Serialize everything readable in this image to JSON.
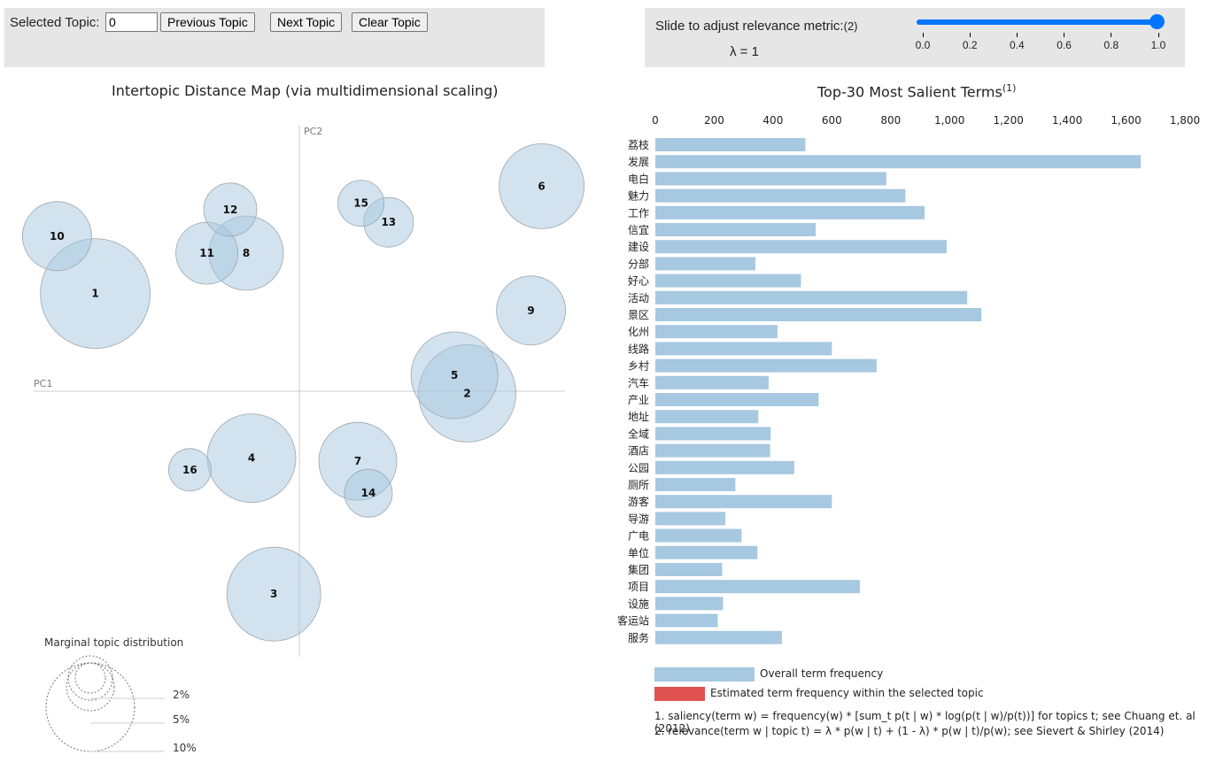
{
  "topic_control": {
    "label": "Selected Topic:",
    "value": "0",
    "prev_label": "Previous Topic",
    "next_label": "Next Topic",
    "clear_label": "Clear Topic"
  },
  "lambda_control": {
    "label": "Slide to adjust relevance metric:",
    "superscript": "(2)",
    "value_label": "λ = 1",
    "slider_value": 1.0,
    "ticks": [
      "0.0",
      "0.2",
      "0.4",
      "0.6",
      "0.8",
      "1.0"
    ]
  },
  "left_title": "Intertopic Distance Map (via multidimensional scaling)",
  "right_title": "Top-30 Most Salient Terms",
  "right_title_sup": "(1)",
  "axis_labels": {
    "pc1": "PC1",
    "pc2": "PC2"
  },
  "marginal": {
    "title": "Marginal topic distribution",
    "labels": [
      "2%",
      "5%",
      "10%"
    ]
  },
  "chart_data": [
    {
      "type": "scatter",
      "title": "Intertopic Distance Map (via multidimensional scaling)",
      "xlabel": "PC1",
      "ylabel": "PC2",
      "bubble_color": "#a6c8e0",
      "xlim": [
        -0.25,
        0.25
      ],
      "ylim": [
        -0.25,
        0.25
      ],
      "topics": [
        {
          "id": "1",
          "x": -0.192,
          "y": 0.092,
          "size": 6.2
        },
        {
          "id": "2",
          "x": 0.158,
          "y": -0.002,
          "size": 5.5
        },
        {
          "id": "3",
          "x": -0.024,
          "y": -0.191,
          "size": 5.3
        },
        {
          "id": "4",
          "x": -0.045,
          "y": -0.063,
          "size": 5.0
        },
        {
          "id": "5",
          "x": 0.146,
          "y": 0.015,
          "size": 4.9
        },
        {
          "id": "6",
          "x": 0.228,
          "y": 0.193,
          "size": 4.8
        },
        {
          "id": "7",
          "x": 0.055,
          "y": -0.066,
          "size": 4.4
        },
        {
          "id": "8",
          "x": -0.05,
          "y": 0.13,
          "size": 4.2
        },
        {
          "id": "9",
          "x": 0.218,
          "y": 0.076,
          "size": 3.9
        },
        {
          "id": "10",
          "x": -0.228,
          "y": 0.146,
          "size": 3.9
        },
        {
          "id": "11",
          "x": -0.087,
          "y": 0.13,
          "size": 3.5
        },
        {
          "id": "12",
          "x": -0.065,
          "y": 0.171,
          "size": 3.0
        },
        {
          "id": "13",
          "x": 0.084,
          "y": 0.159,
          "size": 2.8
        },
        {
          "id": "14",
          "x": 0.065,
          "y": -0.096,
          "size": 2.7
        },
        {
          "id": "15",
          "x": 0.058,
          "y": 0.177,
          "size": 2.6
        },
        {
          "id": "16",
          "x": -0.103,
          "y": -0.074,
          "size": 2.4
        }
      ]
    },
    {
      "type": "bar",
      "orientation": "horizontal",
      "title": "Top-30 Most Salient Terms",
      "xlim": [
        0,
        1800
      ],
      "xticks": [
        0,
        200,
        400,
        600,
        800,
        1000,
        1200,
        1400,
        1600,
        1800
      ],
      "xtick_labels": [
        "0",
        "200",
        "400",
        "600",
        "800",
        "1,000",
        "1,200",
        "1,400",
        "1,600",
        "1,800"
      ],
      "bar_color": "#a6c8e0",
      "categories": [
        "荔枝",
        "发展",
        "电白",
        "魅力",
        "工作",
        "信宜",
        "建设",
        "分部",
        "好心",
        "活动",
        "景区",
        "化州",
        "线路",
        "乡村",
        "汽车",
        "产业",
        "地址",
        "全域",
        "酒店",
        "公园",
        "厕所",
        "游客",
        "导游",
        "广电",
        "单位",
        "集团",
        "项目",
        "设施",
        "客运站",
        "服务"
      ],
      "series": [
        {
          "name": "Overall term frequency",
          "values": [
            510,
            1650,
            785,
            850,
            915,
            545,
            990,
            340,
            495,
            1060,
            1108,
            415,
            600,
            752,
            385,
            555,
            350,
            392,
            390,
            472,
            272,
            600,
            238,
            293,
            347,
            227,
            695,
            230,
            212,
            430
          ]
        }
      ],
      "legend": [
        "Overall term frequency",
        "Estimated term frequency within the selected topic"
      ],
      "legend_colors": [
        "#a6c8e0",
        "#e05252"
      ]
    }
  ],
  "footnotes": [
    "1. saliency(term w) = frequency(w) * [sum_t p(t | w) * log(p(t | w)/p(t))] for topics t; see Chuang et. al (2012)",
    "2. relevance(term w | topic t) = λ * p(w | t) + (1 - λ) * p(w | t)/p(w); see Sievert & Shirley (2014)"
  ]
}
